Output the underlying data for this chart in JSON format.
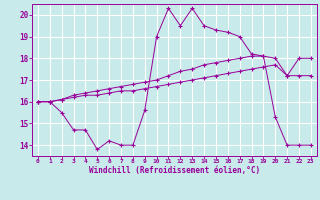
{
  "xlabel": "Windchill (Refroidissement éolien,°C)",
  "bg_color": "#c8eaea",
  "line_color": "#990099",
  "grid_color": "#ffffff",
  "xlim": [
    -0.5,
    23.5
  ],
  "ylim": [
    13.5,
    20.5
  ],
  "yticks": [
    14,
    15,
    16,
    17,
    18,
    19,
    20
  ],
  "xticks": [
    0,
    1,
    2,
    3,
    4,
    5,
    6,
    7,
    8,
    9,
    10,
    11,
    12,
    13,
    14,
    15,
    16,
    17,
    18,
    19,
    20,
    21,
    22,
    23
  ],
  "series1_x": [
    0,
    1,
    2,
    3,
    4,
    5,
    6,
    7,
    8,
    9,
    10,
    11,
    12,
    13,
    14,
    15,
    16,
    17,
    18,
    19,
    20,
    21,
    22,
    23
  ],
  "series1_y": [
    16.0,
    16.0,
    16.1,
    16.2,
    16.3,
    16.3,
    16.4,
    16.5,
    16.5,
    16.6,
    16.7,
    16.8,
    16.9,
    17.0,
    17.1,
    17.2,
    17.3,
    17.4,
    17.5,
    17.6,
    17.7,
    17.2,
    17.2,
    17.2
  ],
  "series2_x": [
    0,
    1,
    2,
    3,
    4,
    5,
    6,
    7,
    8,
    9,
    10,
    11,
    12,
    13,
    14,
    15,
    16,
    17,
    18,
    19,
    20,
    21,
    22,
    23
  ],
  "series2_y": [
    16.0,
    16.0,
    16.1,
    16.3,
    16.4,
    16.5,
    16.6,
    16.7,
    16.8,
    16.9,
    17.0,
    17.2,
    17.4,
    17.5,
    17.7,
    17.8,
    17.9,
    18.0,
    18.1,
    18.1,
    18.0,
    17.2,
    18.0,
    18.0
  ],
  "series3_x": [
    0,
    1,
    2,
    3,
    4,
    5,
    6,
    7,
    8,
    9,
    10,
    11,
    12,
    13,
    14,
    15,
    16,
    17,
    18,
    19,
    20,
    21,
    22,
    23
  ],
  "series3_y": [
    16.0,
    16.0,
    15.5,
    14.7,
    14.7,
    13.8,
    14.2,
    14.0,
    14.0,
    15.6,
    19.0,
    20.3,
    19.5,
    20.3,
    19.5,
    19.3,
    19.2,
    19.0,
    18.2,
    18.1,
    15.3,
    14.0,
    14.0,
    14.0
  ]
}
